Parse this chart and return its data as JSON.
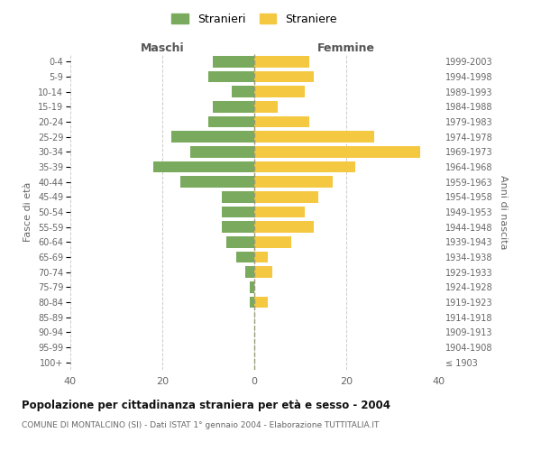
{
  "age_groups": [
    "100+",
    "95-99",
    "90-94",
    "85-89",
    "80-84",
    "75-79",
    "70-74",
    "65-69",
    "60-64",
    "55-59",
    "50-54",
    "45-49",
    "40-44",
    "35-39",
    "30-34",
    "25-29",
    "20-24",
    "15-19",
    "10-14",
    "5-9",
    "0-4"
  ],
  "birth_years": [
    "≤ 1903",
    "1904-1908",
    "1909-1913",
    "1914-1918",
    "1919-1923",
    "1924-1928",
    "1929-1933",
    "1934-1938",
    "1939-1943",
    "1944-1948",
    "1949-1953",
    "1954-1958",
    "1959-1963",
    "1964-1968",
    "1969-1973",
    "1974-1978",
    "1979-1983",
    "1984-1988",
    "1989-1993",
    "1994-1998",
    "1999-2003"
  ],
  "males": [
    0,
    0,
    0,
    0,
    1,
    1,
    2,
    4,
    6,
    7,
    7,
    7,
    16,
    22,
    14,
    18,
    10,
    9,
    5,
    10,
    9
  ],
  "females": [
    0,
    0,
    0,
    0,
    3,
    0,
    4,
    3,
    8,
    13,
    11,
    14,
    17,
    22,
    36,
    26,
    12,
    5,
    11,
    13,
    12
  ],
  "male_color": "#7aaa5d",
  "female_color": "#f5c842",
  "background_color": "#ffffff",
  "grid_color": "#cccccc",
  "title": "Popolazione per cittadinanza straniera per età e sesso - 2004",
  "subtitle": "COMUNE DI MONTALCINO (SI) - Dati ISTAT 1° gennaio 2004 - Elaborazione TUTTITALIA.IT",
  "xlabel_left": "Maschi",
  "xlabel_right": "Femmine",
  "ylabel_left": "Fasce di età",
  "ylabel_right": "Anni di nascita",
  "legend_males": "Stranieri",
  "legend_females": "Straniere",
  "xlim": 40,
  "bar_height": 0.75
}
